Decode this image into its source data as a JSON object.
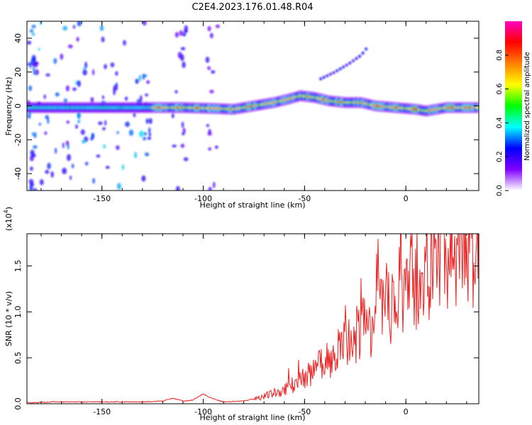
{
  "title": "C2E4.2023.176.01.48.R04",
  "chart_data": [
    {
      "type": "heatmap",
      "name": "spectrogram",
      "xlabel": "Height of straight line (km)",
      "ylabel": "Frequency (Hz)",
      "xlim": [
        -187,
        36
      ],
      "ylim": [
        -50,
        50
      ],
      "xticks": [
        -150,
        -100,
        -50,
        0
      ],
      "yticks": [
        -40,
        -20,
        0,
        20,
        40
      ],
      "xtick_labels": [
        "-150",
        "-100",
        "-50",
        "0"
      ],
      "ytick_labels": [
        "-40",
        "-20",
        "0",
        "20",
        "40"
      ],
      "colorbar": {
        "label": "Normalized spectral amplitude",
        "range": [
          0.0,
          1.0
        ],
        "ticks": [
          0.0,
          0.2,
          0.4,
          0.6,
          0.8
        ],
        "tick_labels": [
          "0.0",
          "0.2",
          "0.4",
          "0.6",
          "0.8"
        ],
        "colors": [
          "#ffffff",
          "#7f00ff",
          "#0000ff",
          "#00ffff",
          "#00ff00",
          "#ffff00",
          "#ff8000",
          "#ff0000",
          "#ff00c0"
        ]
      },
      "ridge": {
        "x": [
          -187,
          -150,
          -130,
          -125,
          -110,
          -95,
          -85,
          -75,
          -65,
          -58,
          -52,
          -45,
          -38,
          -30,
          -22,
          -15,
          -5,
          5,
          10,
          20,
          36
        ],
        "y": [
          -1,
          -1,
          -1,
          -1,
          -1,
          -1.5,
          -2,
          0,
          2,
          4,
          6,
          5,
          3,
          2,
          2,
          0,
          -1,
          -2,
          -3,
          -1,
          -1
        ]
      },
      "secondary_ridge": {
        "x": [
          -42,
          -35,
          -28,
          -22,
          -18
        ],
        "y": [
          16,
          20,
          25,
          30,
          36
        ]
      }
    },
    {
      "type": "line",
      "name": "snr",
      "xlabel": "Height of straight line (km)",
      "ylabel": "SNR (10 * v/v)",
      "multiplier_label": "(x10",
      "multiplier_exp": "4",
      "xlim": [
        -187,
        36
      ],
      "ylim": [
        0,
        1.85
      ],
      "xticks": [
        -150,
        -100,
        -50,
        0
      ],
      "yticks": [
        0.0,
        0.5,
        1.0,
        1.5
      ],
      "xtick_labels": [
        "-150",
        "-100",
        "-50",
        "0"
      ],
      "ytick_labels": [
        "0.0",
        "0.5",
        "1.0",
        "1.5"
      ],
      "color": "#ee2222",
      "series": [
        {
          "name": "SNR",
          "x": [
            -187,
            -175,
            -160,
            -145,
            -130,
            -120,
            -115,
            -110,
            -105,
            -100,
            -97,
            -90,
            -80,
            -70,
            -60,
            -55,
            -50,
            -45,
            -40,
            -35,
            -30,
            -25,
            -20,
            -15,
            -10,
            -5,
            0,
            10,
            20,
            30,
            36
          ],
          "y": [
            0.01,
            0.02,
            0.02,
            0.02,
            0.02,
            0.03,
            0.06,
            0.03,
            0.04,
            0.11,
            0.07,
            0.02,
            0.03,
            0.08,
            0.15,
            0.22,
            0.3,
            0.35,
            0.45,
            0.55,
            0.65,
            0.75,
            0.85,
            0.95,
            1.05,
            1.15,
            1.25,
            1.45,
            1.6,
            1.75,
            1.8
          ]
        }
      ]
    }
  ]
}
